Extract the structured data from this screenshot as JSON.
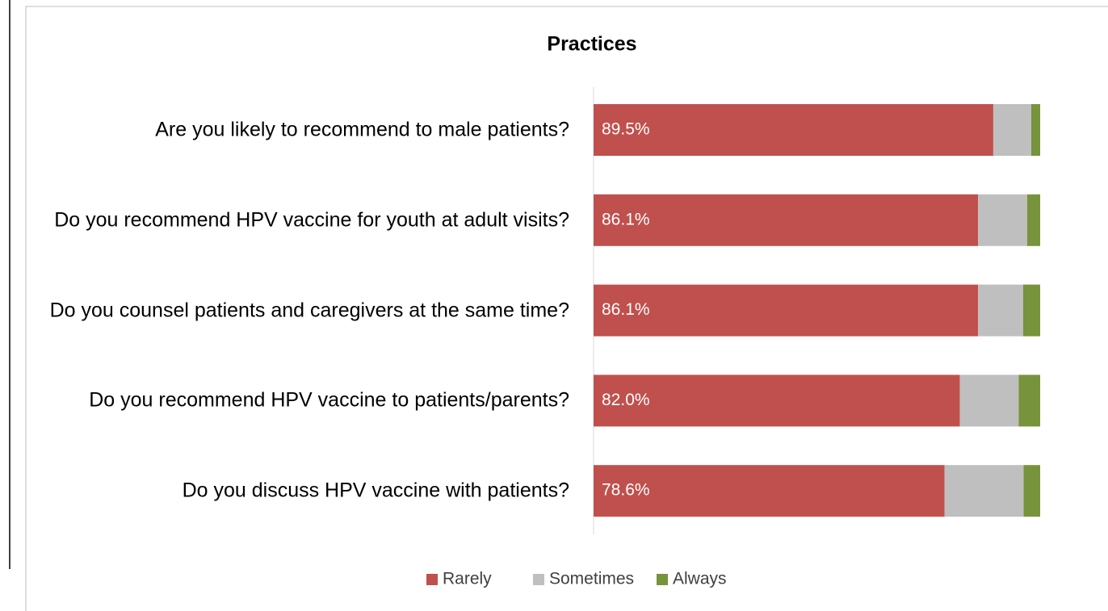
{
  "chart_data": {
    "type": "stacked-bar-horizontal",
    "title": "Practices",
    "categories": [
      "Are you likely to recommend to male patients?",
      "Do you recommend HPV vaccine for youth at adult visits?",
      "Do you counsel patients and caregivers at the same time?",
      "Do you recommend HPV vaccine to patients/parents?",
      "Do you discuss HPV vaccine with patients?"
    ],
    "series": [
      {
        "name": "Rarely",
        "color": "#c0504d",
        "values": [
          89.5,
          86.1,
          86.1,
          82.0,
          78.6
        ],
        "value_labels": [
          "89.5%",
          "86.1%",
          "86.1%",
          "82.0%",
          "78.6%"
        ]
      },
      {
        "name": "Sometimes",
        "color": "#bfbfbf",
        "values": [
          8.5,
          11.0,
          10.1,
          13.2,
          17.7
        ]
      },
      {
        "name": "Always",
        "color": "#77933c",
        "values": [
          2.0,
          2.9,
          3.8,
          4.8,
          3.7
        ]
      }
    ],
    "legend": "bottom"
  }
}
